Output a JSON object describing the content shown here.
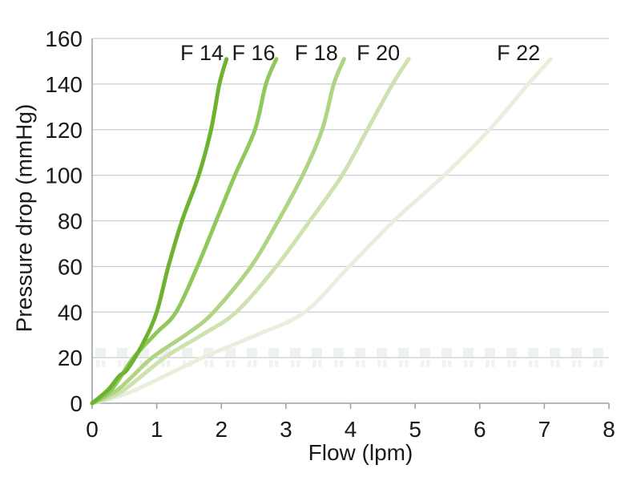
{
  "chart_data": {
    "type": "line",
    "title": "",
    "xlabel": "Flow (lpm)",
    "ylabel": "Pressure drop (mmHg)",
    "xlim": [
      0,
      8
    ],
    "ylim": [
      0,
      160
    ],
    "xticks": [
      0,
      1,
      2,
      3,
      4,
      5,
      6,
      7,
      8
    ],
    "yticks": [
      0,
      20,
      40,
      60,
      80,
      100,
      120,
      140,
      160
    ],
    "grid": "horizontal",
    "legend": "inline-labels-above-curves",
    "colors": {
      "background": "#ffffff",
      "grid": "#c9ced2",
      "axis": "#9aa3a9",
      "text": "#1a1a1a",
      "watermark": "#dfe5e4"
    },
    "series": [
      {
        "name": "F 22",
        "label": "F 22",
        "color": "#e9eedd",
        "label_pos": {
          "flow": 6.6,
          "pressure": 154
        },
        "points_flow_vs_pressure": [
          [
            0,
            0
          ],
          [
            0.6,
            5
          ],
          [
            1.71,
            20
          ],
          [
            2.55,
            30
          ],
          [
            3.29,
            40
          ],
          [
            3.98,
            60
          ],
          [
            4.67,
            80
          ],
          [
            5.45,
            100
          ],
          [
            6.15,
            120
          ],
          [
            6.75,
            140
          ],
          [
            7.1,
            151
          ]
        ]
      },
      {
        "name": "F 20",
        "label": "F 20",
        "color": "#cde2ae",
        "label_pos": {
          "flow": 4.43,
          "pressure": 154
        },
        "points_flow_vs_pressure": [
          [
            0,
            0
          ],
          [
            0.45,
            5
          ],
          [
            1.12,
            20
          ],
          [
            1.7,
            30
          ],
          [
            2.23,
            40
          ],
          [
            2.85,
            60
          ],
          [
            3.37,
            80
          ],
          [
            3.87,
            100
          ],
          [
            4.26,
            120
          ],
          [
            4.65,
            140
          ],
          [
            4.9,
            151
          ]
        ]
      },
      {
        "name": "F 18",
        "label": "F 18",
        "color": "#afd483",
        "label_pos": {
          "flow": 3.47,
          "pressure": 154
        },
        "points_flow_vs_pressure": [
          [
            0,
            0
          ],
          [
            0.4,
            6
          ],
          [
            0.93,
            20
          ],
          [
            1.5,
            31
          ],
          [
            1.88,
            40
          ],
          [
            2.46,
            60
          ],
          [
            2.88,
            80
          ],
          [
            3.26,
            100
          ],
          [
            3.56,
            120
          ],
          [
            3.74,
            140
          ],
          [
            3.9,
            151
          ]
        ]
      },
      {
        "name": "F 16",
        "label": "F 16",
        "color": "#90c85c",
        "label_pos": {
          "flow": 2.5,
          "pressure": 154
        },
        "points_flow_vs_pressure": [
          [
            0,
            0
          ],
          [
            0.3,
            6
          ],
          [
            0.64,
            20
          ],
          [
            1.0,
            31
          ],
          [
            1.3,
            40
          ],
          [
            1.63,
            60
          ],
          [
            1.92,
            80
          ],
          [
            2.21,
            100
          ],
          [
            2.52,
            120
          ],
          [
            2.69,
            140
          ],
          [
            2.85,
            151
          ]
        ]
      },
      {
        "name": "F 14",
        "label": "F 14",
        "color": "#6db32f",
        "label_pos": {
          "flow": 1.7,
          "pressure": 154
        },
        "points_flow_vs_pressure": [
          [
            0,
            0
          ],
          [
            0.25,
            6
          ],
          [
            0.42,
            12
          ],
          [
            0.55,
            15
          ],
          [
            0.8,
            27
          ],
          [
            1.0,
            40
          ],
          [
            1.18,
            60
          ],
          [
            1.39,
            80
          ],
          [
            1.65,
            100
          ],
          [
            1.84,
            120
          ],
          [
            1.97,
            140
          ],
          [
            2.08,
            151
          ]
        ]
      }
    ]
  }
}
